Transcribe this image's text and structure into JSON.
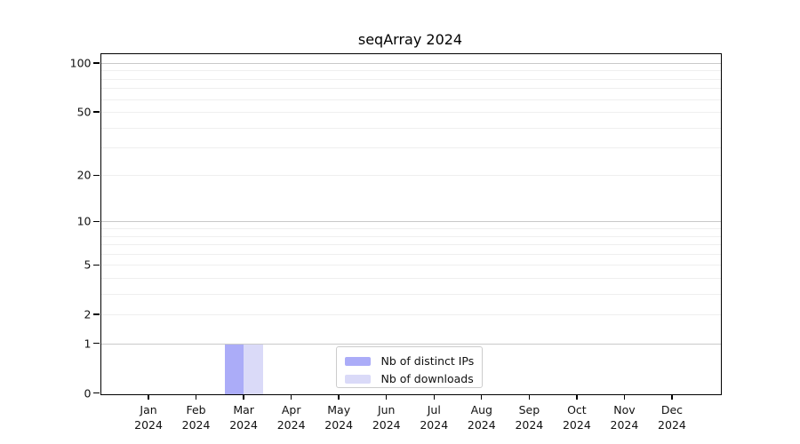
{
  "chart_data": {
    "type": "bar",
    "title": "seqArray 2024",
    "categories": [
      "Jan",
      "Feb",
      "Mar",
      "Apr",
      "May",
      "Jun",
      "Jul",
      "Aug",
      "Sep",
      "Oct",
      "Nov",
      "Dec"
    ],
    "category_year": "2024",
    "series": [
      {
        "name": "Nb of distinct IPs",
        "color": "#abacf8",
        "values": [
          0,
          0,
          1,
          0,
          0,
          0,
          0,
          0,
          0,
          0,
          0,
          0
        ]
      },
      {
        "name": "Nb of downloads",
        "color": "#dadaf8",
        "values": [
          0,
          0,
          1,
          0,
          0,
          0,
          0,
          0,
          0,
          0,
          0,
          0
        ]
      }
    ],
    "xlabel": "",
    "ylabel": "",
    "yscale": "log1p",
    "ylim": [
      0,
      114
    ],
    "ytick_values": [
      0,
      1,
      2,
      5,
      10,
      20,
      50,
      100
    ],
    "major_gridlines": [
      1,
      10,
      100
    ],
    "minor_gridlines": [
      2,
      3,
      4,
      5,
      6,
      7,
      8,
      9,
      20,
      30,
      40,
      50,
      60,
      70,
      80,
      90
    ],
    "grid": true,
    "legend_position": "lower center"
  }
}
